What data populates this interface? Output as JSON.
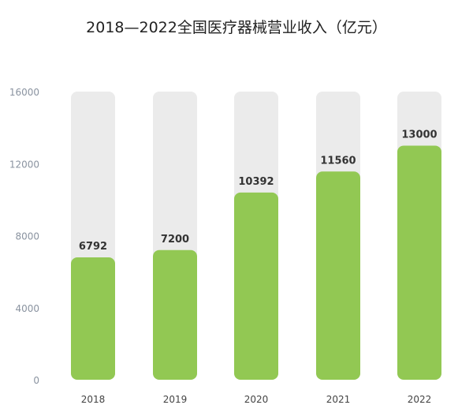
{
  "chart_data": {
    "type": "bar",
    "title": "2018—2022全国医疗器械营业收入（亿元）",
    "categories": [
      "2018",
      "2019",
      "2020",
      "2021",
      "2022"
    ],
    "values": [
      6792,
      7200,
      10392,
      11560,
      13000
    ],
    "data_labels": [
      "6792",
      "7200",
      "10392",
      "11560",
      "13000"
    ],
    "ylim": [
      0,
      16000
    ],
    "yticks": [
      "0",
      "4000",
      "8000",
      "12000",
      "16000"
    ],
    "xlabel": "",
    "ylabel": "",
    "grid": false,
    "colors": {
      "bar": "#92c853",
      "track": "#ebebeb",
      "tick_label": "#8a93a0",
      "data_label": "#333333"
    }
  }
}
